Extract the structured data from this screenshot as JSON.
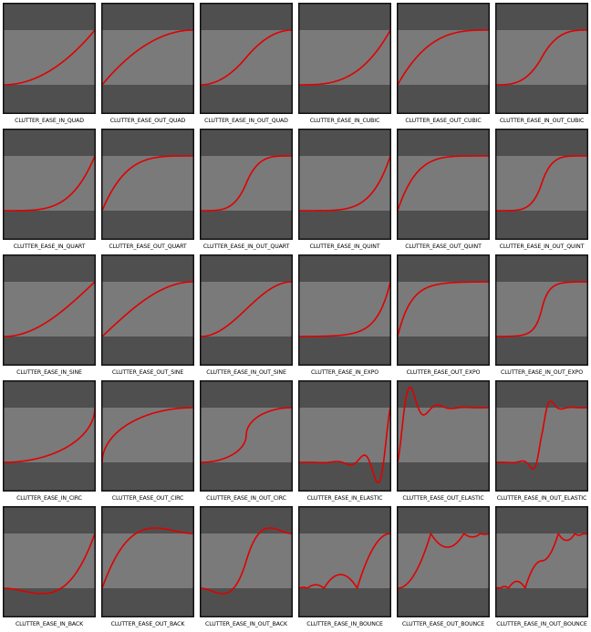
{
  "colors": {
    "outer": "#4f4f4f",
    "band": "#7a7a7a",
    "curve": "#e00000",
    "frame": "#111111"
  },
  "modes": [
    {
      "label": "CLUTTER_EASE_IN_QUAD",
      "fn": "inQuad"
    },
    {
      "label": "CLUTTER_EASE_OUT_QUAD",
      "fn": "outQuad"
    },
    {
      "label": "CLUTTER_EASE_IN_OUT_QUAD",
      "fn": "inOutQuad"
    },
    {
      "label": "CLUTTER_EASE_IN_CUBIC",
      "fn": "inCubic"
    },
    {
      "label": "CLUTTER_EASE_OUT_CUBIC",
      "fn": "outCubic"
    },
    {
      "label": "CLUTTER_EASE_IN_OUT_CUBIC",
      "fn": "inOutCubic"
    },
    {
      "label": "CLUTTER_EASE_IN_QUART",
      "fn": "inQuart"
    },
    {
      "label": "CLUTTER_EASE_OUT_QUART",
      "fn": "outQuart"
    },
    {
      "label": "CLUTTER_EASE_IN_OUT_QUART",
      "fn": "inOutQuart"
    },
    {
      "label": "CLUTTER_EASE_IN_QUINT",
      "fn": "inQuint"
    },
    {
      "label": "CLUTTER_EASE_OUT_QUINT",
      "fn": "outQuint"
    },
    {
      "label": "CLUTTER_EASE_IN_OUT_QUINT",
      "fn": "inOutQuint"
    },
    {
      "label": "CLUTTER_EASE_IN_SINE",
      "fn": "inSine"
    },
    {
      "label": "CLUTTER_EASE_OUT_SINE",
      "fn": "outSine"
    },
    {
      "label": "CLUTTER_EASE_IN_OUT_SINE",
      "fn": "inOutSine"
    },
    {
      "label": "CLUTTER_EASE_IN_EXPO",
      "fn": "inExpo"
    },
    {
      "label": "CLUTTER_EASE_OUT_EXPO",
      "fn": "outExpo"
    },
    {
      "label": "CLUTTER_EASE_IN_OUT_EXPO",
      "fn": "inOutExpo"
    },
    {
      "label": "CLUTTER_EASE_IN_CIRC",
      "fn": "inCirc"
    },
    {
      "label": "CLUTTER_EASE_OUT_CIRC",
      "fn": "outCirc"
    },
    {
      "label": "CLUTTER_EASE_IN_OUT_CIRC",
      "fn": "inOutCirc"
    },
    {
      "label": "CLUTTER_EASE_IN_ELASTIC",
      "fn": "inElastic"
    },
    {
      "label": "CLUTTER_EASE_OUT_ELASTIC",
      "fn": "outElastic"
    },
    {
      "label": "CLUTTER_EASE_IN_OUT_ELASTIC",
      "fn": "inOutElastic"
    },
    {
      "label": "CLUTTER_EASE_IN_BACK",
      "fn": "inBack"
    },
    {
      "label": "CLUTTER_EASE_OUT_BACK",
      "fn": "outBack"
    },
    {
      "label": "CLUTTER_EASE_IN_OUT_BACK",
      "fn": "inOutBack"
    },
    {
      "label": "CLUTTER_EASE_IN_BOUNCE",
      "fn": "inBounce"
    },
    {
      "label": "CLUTTER_EASE_OUT_BOUNCE",
      "fn": "outBounce"
    },
    {
      "label": "CLUTTER_EASE_IN_OUT_BOUNCE",
      "fn": "inOutBounce"
    }
  ]
}
